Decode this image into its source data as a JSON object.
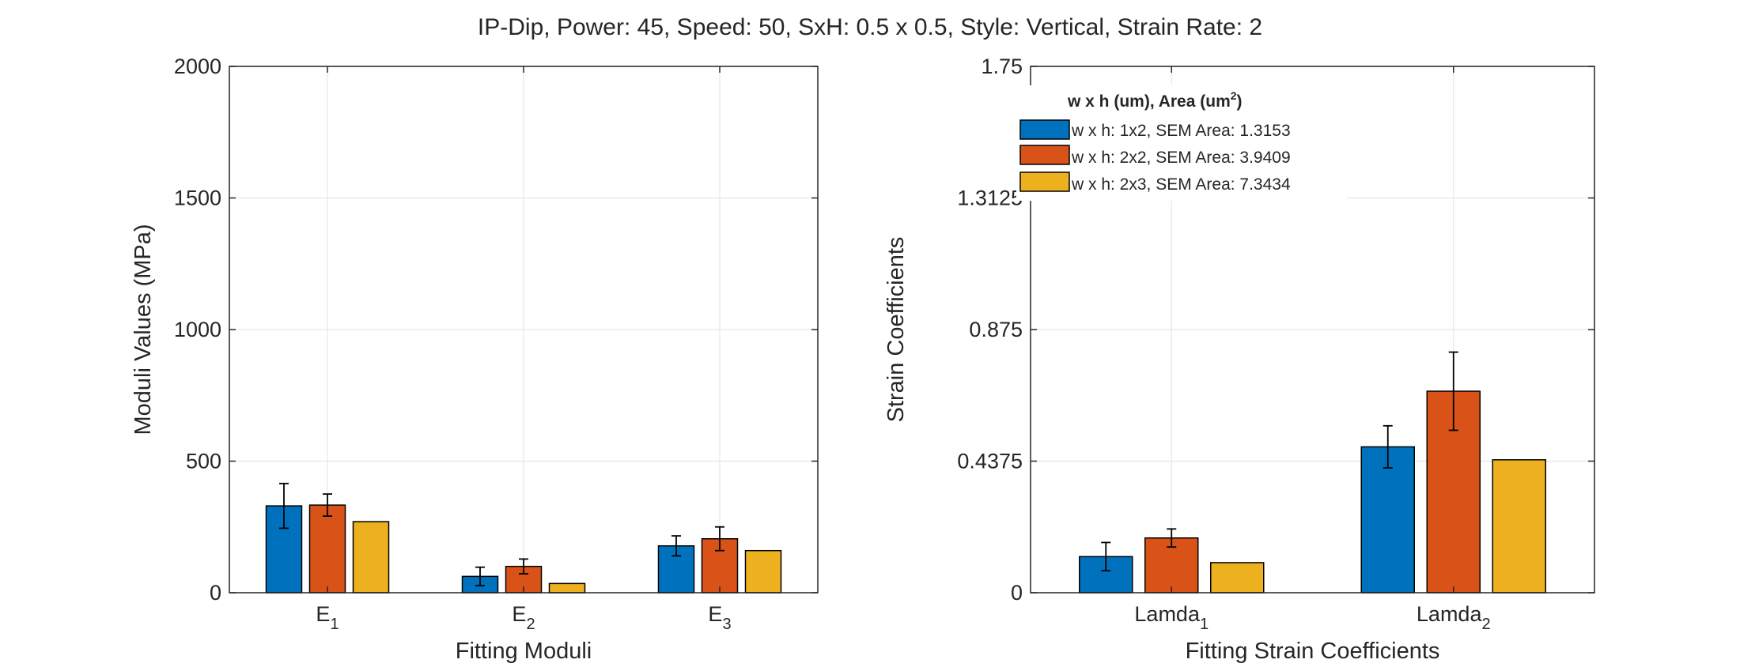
{
  "suptitle": "IP-Dip, Power: 45, Speed: 50, SxH: 0.5 x 0.5, Style: Vertical, Strain Rate: 2",
  "legend": {
    "title_main": "w x h (um), Area (um",
    "title_sup": "2",
    "title_close": ")",
    "entries": [
      "w x h: 1x2, SEM Area: 1.3153",
      "w x h: 2x2, SEM Area: 3.9409",
      "w x h: 2x3, SEM Area: 7.3434"
    ]
  },
  "colors": {
    "series": [
      "#0072BD",
      "#D95319",
      "#EDB120"
    ],
    "grid": "#e6e6e6",
    "axis": "#262626"
  },
  "chart_data": [
    {
      "type": "bar",
      "xlabel": "Fitting Moduli",
      "ylabel": "Moduli Values (MPa)",
      "ylim": [
        0,
        2000
      ],
      "yticks": [
        "0",
        "500",
        "1000",
        "1500",
        "2000"
      ],
      "ytick_values": [
        0,
        500,
        1000,
        1500,
        2000
      ],
      "categories": [
        {
          "base": "E",
          "sub": "1"
        },
        {
          "base": "E",
          "sub": "2"
        },
        {
          "base": "E",
          "sub": "3"
        }
      ],
      "grid": true,
      "series": [
        {
          "name": "w x h: 1x2, SEM Area: 1.3153",
          "values": [
            330,
            62,
            178
          ],
          "err": [
            85,
            35,
            38
          ]
        },
        {
          "name": "w x h: 2x2, SEM Area: 3.9409",
          "values": [
            333,
            100,
            205
          ],
          "err": [
            42,
            28,
            45
          ]
        },
        {
          "name": "w x h: 2x3, SEM Area: 7.3434",
          "values": [
            270,
            35,
            160
          ],
          "err": null
        }
      ]
    },
    {
      "type": "bar",
      "xlabel": "Fitting Strain Coefficients",
      "ylabel": "Strain Coefficients",
      "ylim": [
        0,
        1.75
      ],
      "yticks": [
        "0",
        "0.4375",
        "0.875",
        "1.3125",
        "1.75"
      ],
      "ytick_values": [
        0,
        0.4375,
        0.875,
        1.3125,
        1.75
      ],
      "categories": [
        {
          "base": "Lamda",
          "sub": "1"
        },
        {
          "base": "Lamda",
          "sub": "2"
        }
      ],
      "grid": true,
      "legend_position": "top-left",
      "series": [
        {
          "name": "w x h: 1x2, SEM Area: 1.3153",
          "values": [
            0.12,
            0.485
          ],
          "err": [
            0.047,
            0.07
          ]
        },
        {
          "name": "w x h: 2x2, SEM Area: 3.9409",
          "values": [
            0.182,
            0.67
          ],
          "err": [
            0.03,
            0.13
          ]
        },
        {
          "name": "w x h: 2x3, SEM Area: 7.3434",
          "values": [
            0.1,
            0.442
          ],
          "err": null
        }
      ]
    }
  ]
}
